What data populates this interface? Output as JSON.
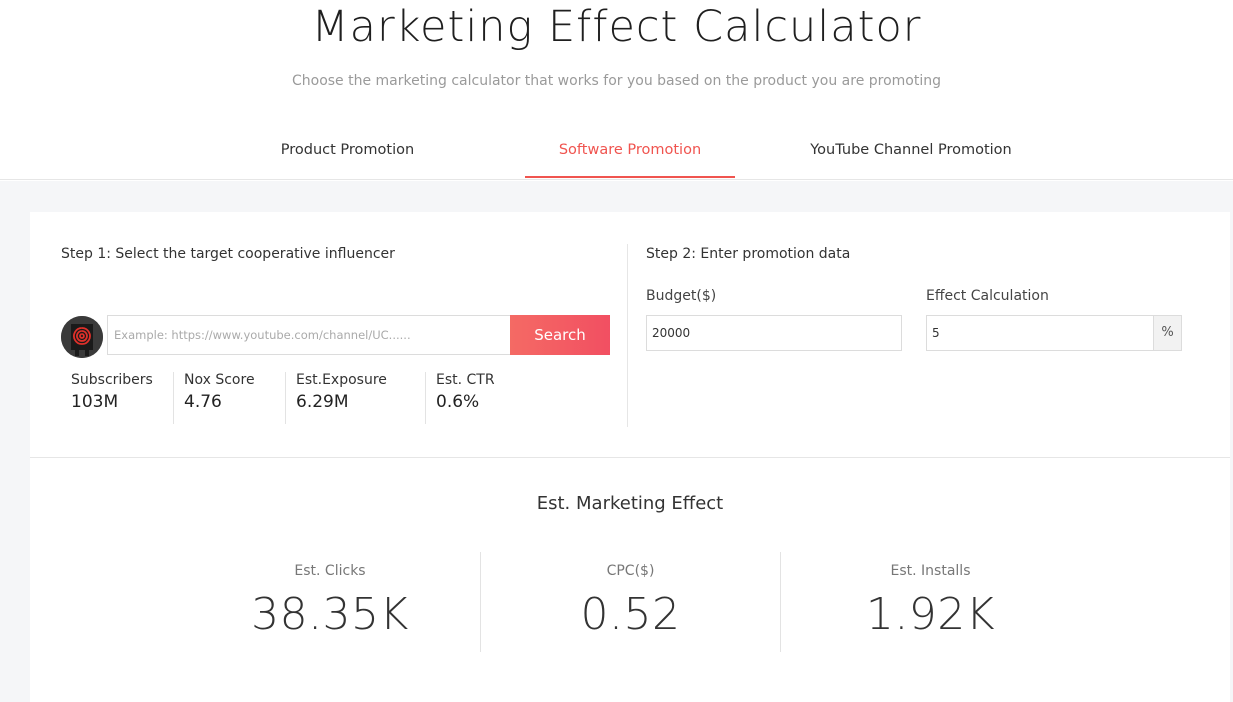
{
  "header": {
    "title": "Marketing Effect Calculator",
    "subtitle": "Choose the marketing calculator that works for you based on the product you are promoting"
  },
  "tabs": [
    {
      "label": "Product Promotion",
      "active": false
    },
    {
      "label": "Software Promotion",
      "active": true
    },
    {
      "label": "YouTube Channel Promotion",
      "active": false
    }
  ],
  "step1": {
    "title": "Step 1: Select the target cooperative influencer",
    "search_placeholder": "Example: https://www.youtube.com/channel/UC......",
    "search_button": "Search",
    "stats": [
      {
        "label": "Subscribers",
        "value": "103M"
      },
      {
        "label": "Nox Score",
        "value": "4.76"
      },
      {
        "label": "Est.Exposure",
        "value": "6.29M"
      },
      {
        "label": "Est. CTR",
        "value": "0.6%"
      }
    ]
  },
  "step2": {
    "title": "Step 2: Enter promotion data",
    "budget_label": "Budget($)",
    "budget_value": "20000",
    "effect_label": "Effect Calculation",
    "effect_value": "5",
    "effect_unit": "%"
  },
  "result": {
    "title": "Est. Marketing Effect",
    "metrics": [
      {
        "label": "Est. Clicks",
        "value": "38.35K"
      },
      {
        "label": "CPC($)",
        "value": "0.52"
      },
      {
        "label": "Est. Installs",
        "value": "1.92K"
      }
    ]
  },
  "colors": {
    "accent": "#f0544f",
    "button": "#f24f62",
    "background": "#f5f6f8"
  }
}
